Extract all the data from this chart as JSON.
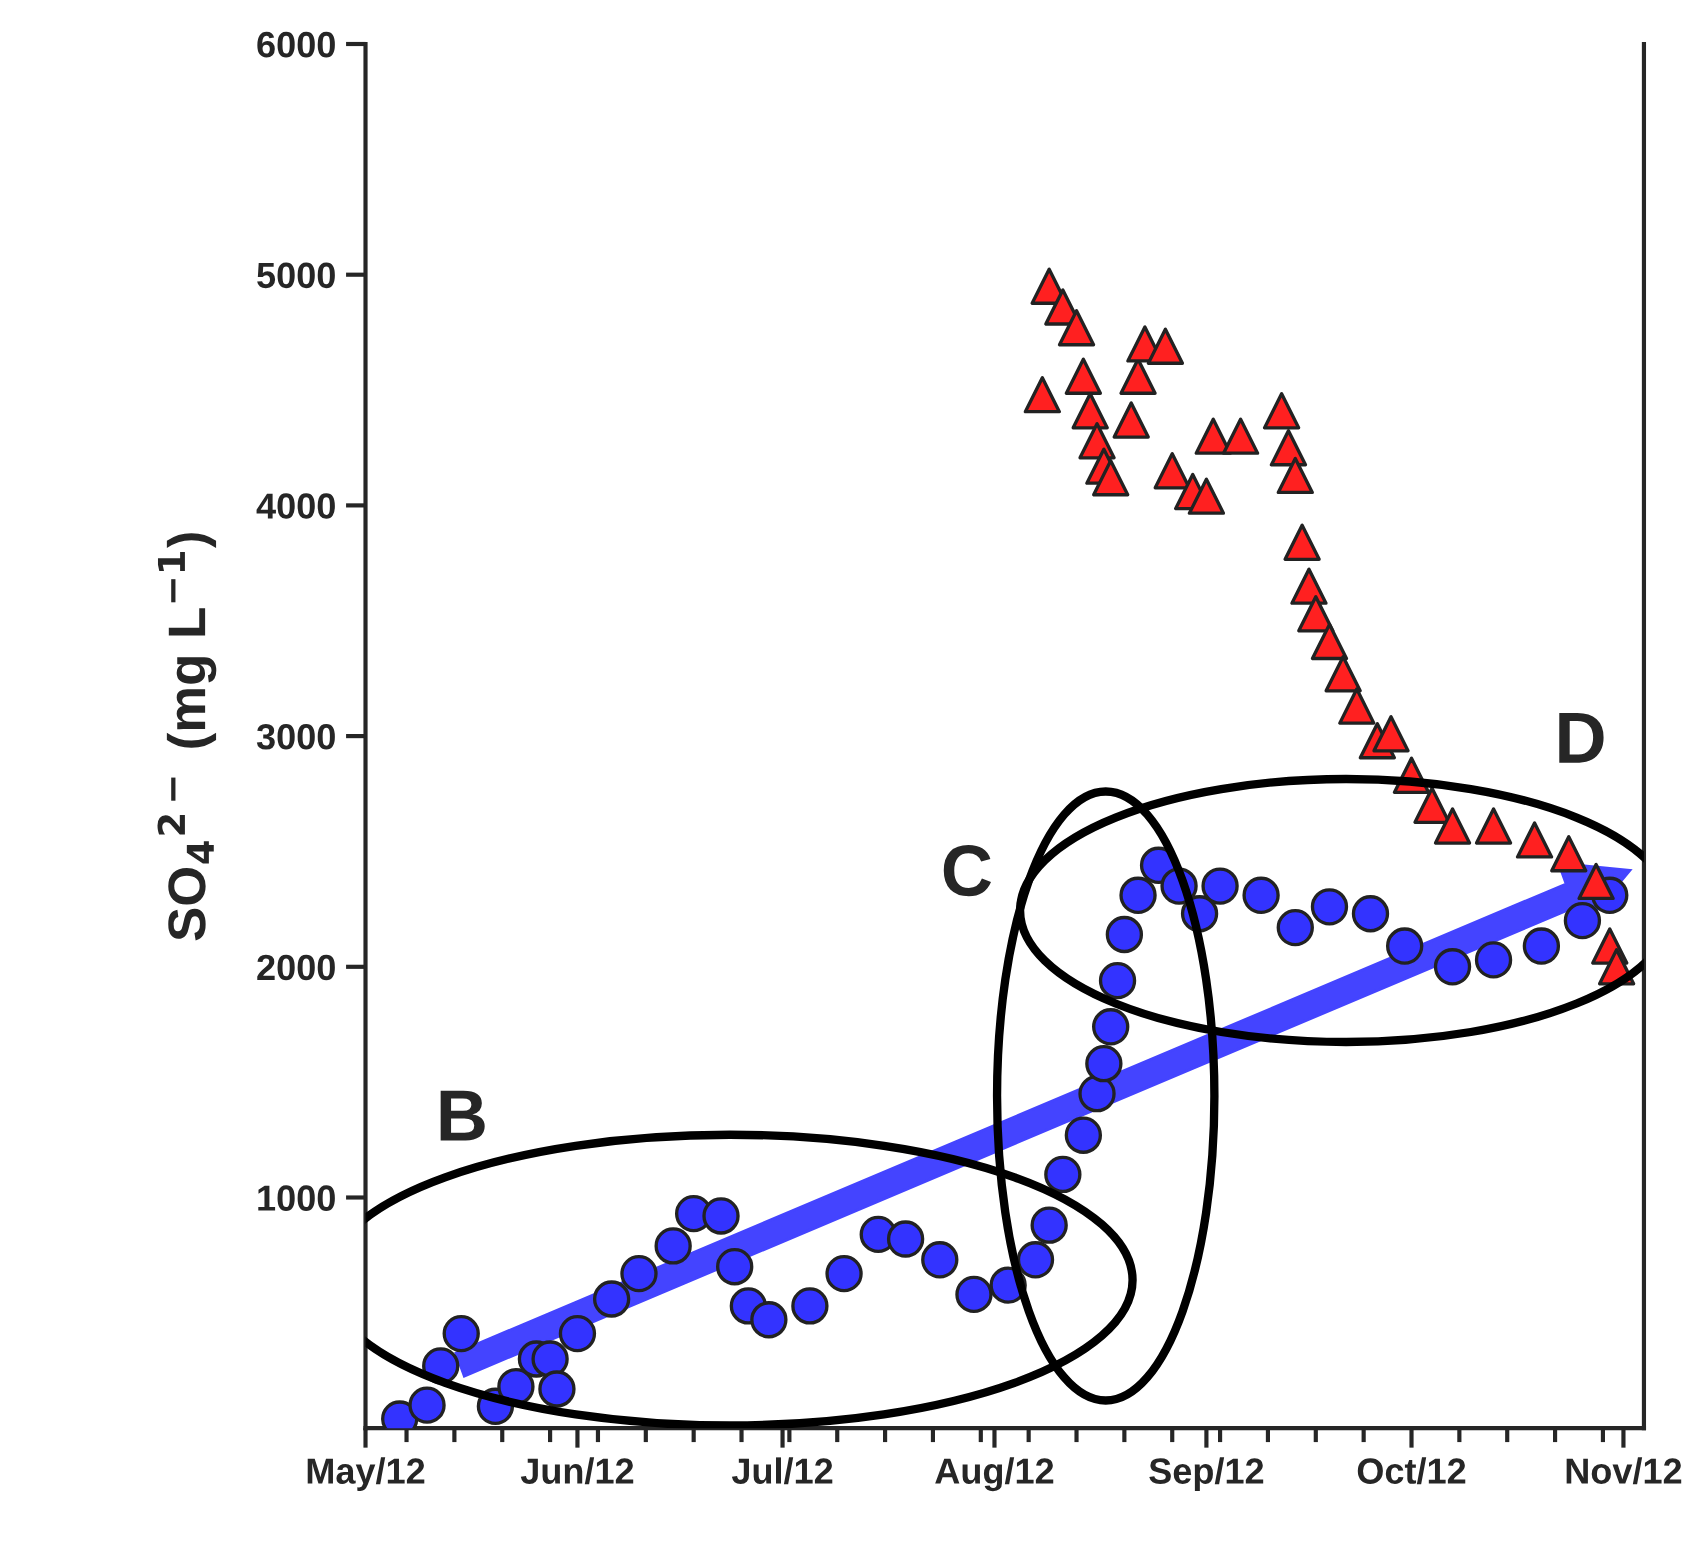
{
  "chart_data": {
    "type": "scatter",
    "ylabel": "SO$_{4}$$^{2−}$ (mg L$^{−1}$)",
    "xlim": [
      "2012-05-01",
      "2012-11-04"
    ],
    "xticks": [
      {
        "value": "2012-05-01",
        "label": "May/12"
      },
      {
        "value": "2012-06-01",
        "label": "Jun/12"
      },
      {
        "value": "2012-07-01",
        "label": "Jul/12"
      },
      {
        "value": "2012-08-01",
        "label": "Aug/12"
      },
      {
        "value": "2012-09-01",
        "label": "Sep/12"
      },
      {
        "value": "2012-10-01",
        "label": "Oct/12"
      },
      {
        "value": "2012-11-01",
        "label": "Nov/12"
      }
    ],
    "ylim": [
      0,
      6000
    ],
    "yticks": [
      1000,
      2000,
      3000,
      4000,
      5000,
      6000
    ],
    "grid": false,
    "legend": false,
    "annotations": [
      "B",
      "C",
      "D"
    ],
    "series": [
      {
        "color": "#3333ff",
        "marker": "circle",
        "x": [
          "2012-05-06",
          "2012-05-10",
          "2012-05-12",
          "2012-05-15",
          "2012-05-20",
          "2012-05-23",
          "2012-05-26",
          "2012-05-28",
          "2012-05-29",
          "2012-06-01",
          "2012-06-06",
          "2012-06-10",
          "2012-06-15",
          "2012-06-18",
          "2012-06-22",
          "2012-06-24",
          "2012-06-26",
          "2012-06-29",
          "2012-07-05",
          "2012-07-10",
          "2012-07-15",
          "2012-07-19",
          "2012-07-24",
          "2012-07-29",
          "2012-08-03",
          "2012-08-07",
          "2012-08-09",
          "2012-08-11",
          "2012-08-14",
          "2012-08-16",
          "2012-08-17",
          "2012-08-18",
          "2012-08-19",
          "2012-08-20",
          "2012-08-22",
          "2012-08-25",
          "2012-08-28",
          "2012-08-31",
          "2012-09-03",
          "2012-09-09",
          "2012-09-14",
          "2012-09-19",
          "2012-09-25",
          "2012-09-30",
          "2012-10-07",
          "2012-10-13",
          "2012-10-20",
          "2012-10-26",
          "2012-10-30"
        ],
        "values": [
          40,
          100,
          270,
          410,
          95,
          180,
          300,
          300,
          170,
          410,
          560,
          670,
          790,
          930,
          920,
          700,
          530,
          470,
          530,
          670,
          840,
          820,
          730,
          580,
          620,
          730,
          880,
          1100,
          1270,
          1450,
          1580,
          1740,
          1940,
          2140,
          2310,
          2440,
          2350,
          2230,
          2350,
          2310,
          2170,
          2260,
          2230,
          2090,
          2000,
          2030,
          2090,
          2200,
          2310
        ]
      },
      {
        "color": "#ff2020",
        "marker": "triangle",
        "x": [
          "2012-08-08",
          "2012-08-09",
          "2012-08-11",
          "2012-08-13",
          "2012-08-14",
          "2012-08-15",
          "2012-08-16",
          "2012-08-17",
          "2012-08-18",
          "2012-08-21",
          "2012-08-22",
          "2012-08-23",
          "2012-08-26",
          "2012-08-27",
          "2012-08-30",
          "2012-09-01",
          "2012-09-02",
          "2012-09-06",
          "2012-09-12",
          "2012-09-13",
          "2012-09-14",
          "2012-09-15",
          "2012-09-16",
          "2012-09-17",
          "2012-09-19",
          "2012-09-21",
          "2012-09-23",
          "2012-09-26",
          "2012-09-28",
          "2012-10-01",
          "2012-10-04",
          "2012-10-07",
          "2012-10-13",
          "2012-10-19",
          "2012-10-24",
          "2012-10-28",
          "2012-10-30",
          "2012-10-31"
        ],
        "values": [
          4480,
          4950,
          4860,
          4770,
          4560,
          4410,
          4280,
          4170,
          4120,
          4370,
          4560,
          4700,
          4690,
          4150,
          4060,
          4040,
          4300,
          4300,
          4410,
          4250,
          4130,
          3840,
          3650,
          3530,
          3410,
          3270,
          3130,
          2980,
          3010,
          2830,
          2700,
          2610,
          2610,
          2550,
          2490,
          2370,
          2090,
          2000
        ]
      }
    ]
  }
}
